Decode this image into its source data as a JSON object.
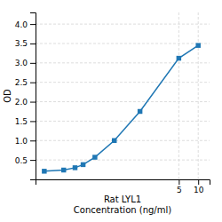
{
  "chart_data": {
    "type": "line",
    "xlabel": "Rat LYL1\nConcentration (ng/ml)",
    "ylabel": "OD",
    "x": [
      0.041,
      0.082,
      0.123,
      0.164,
      0.25,
      0.5,
      1.25,
      5.0,
      10.0
    ],
    "values": [
      0.21,
      0.24,
      0.3,
      0.38,
      0.57,
      1.0,
      1.75,
      3.12,
      3.45
    ],
    "log": "x",
    "xlim": [
      0.03,
      15
    ],
    "xticks": [
      5,
      10
    ],
    "ylim": [
      0.0,
      4.3
    ],
    "yticks": [
      0.5,
      {
        "value": 1.0,
        "label": "1.0"
      },
      1.5,
      {
        "value": 2.0,
        "label": "2.0"
      },
      2.5,
      {
        "value": 3.0,
        "label": "3.0"
      },
      3.5,
      {
        "value": 4.0,
        "label": "4.0"
      }
    ],
    "grid": true,
    "marker": "square",
    "line_style": "solid"
  }
}
